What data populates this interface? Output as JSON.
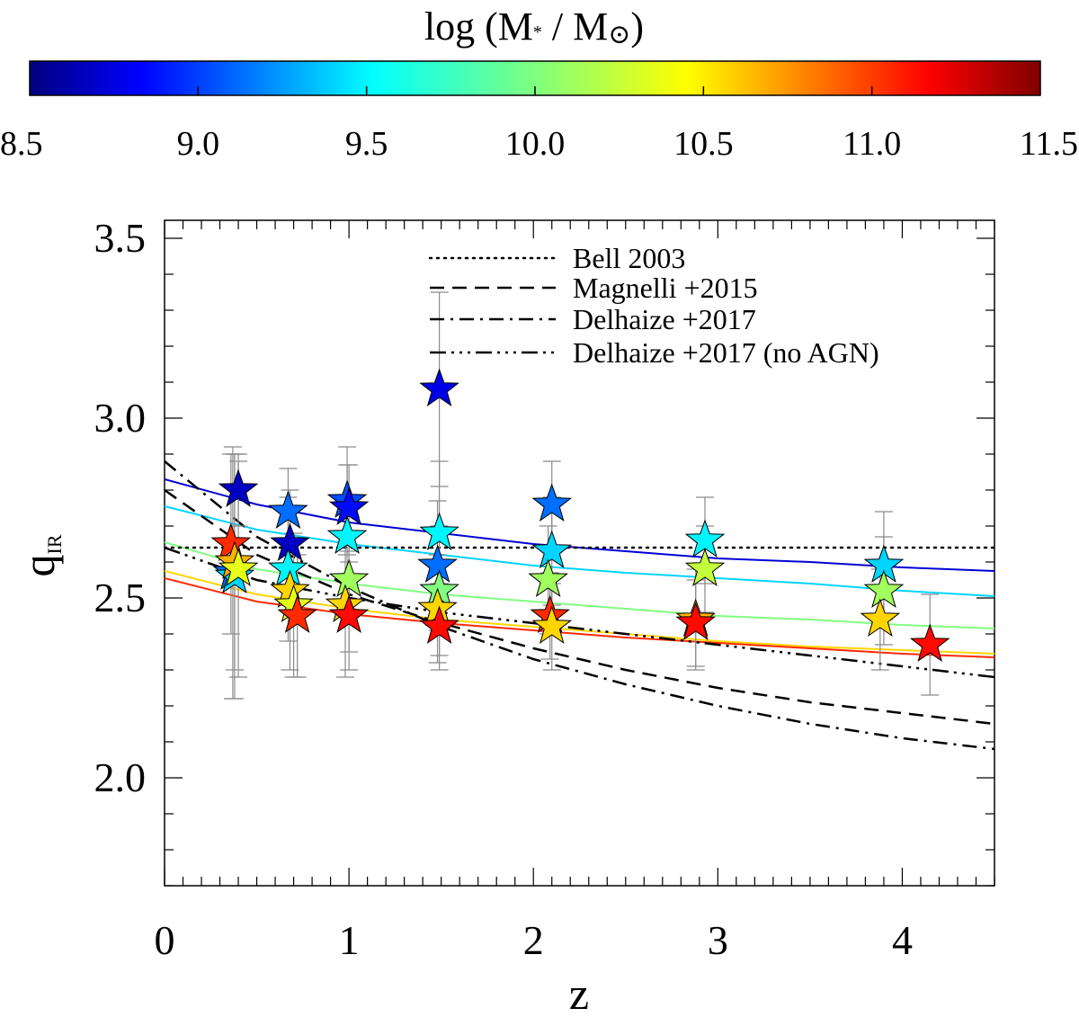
{
  "chart_data": {
    "type": "scatter",
    "colorbar": {
      "title_prefix": "log (M",
      "title_star": "*",
      "title_mid": " / M",
      "title_sun": "⊙",
      "title_suffix": ")",
      "range": [
        8.5,
        11.5
      ],
      "ticks": [
        "8.5",
        "9.0",
        "9.5",
        "10.0",
        "10.5",
        "11.0",
        "11.5"
      ],
      "colormap": [
        "#00007f",
        "#0000ff",
        "#007fff",
        "#00ffff",
        "#7fff7f",
        "#ffff00",
        "#ff7f00",
        "#ff0000",
        "#7f0000"
      ]
    },
    "xlabel": "z",
    "ylabel": "q",
    "ylabel_sub": "IR",
    "xlim": [
      0,
      4.5
    ],
    "ylim": [
      1.7,
      3.55
    ],
    "xticks": [
      "0",
      "1",
      "2",
      "3",
      "4"
    ],
    "yticks": [
      "2.0",
      "2.5",
      "3.0",
      "3.5"
    ],
    "legend": {
      "position": "top-right",
      "entries": [
        {
          "label": "Bell 2003",
          "style": "dotted"
        },
        {
          "label": "Magnelli +2015",
          "style": "dashed"
        },
        {
          "label": "Delhaize +2017",
          "style": "dashdot"
        },
        {
          "label": "Delhaize +2017 (no AGN)",
          "style": "dashdotdotdot"
        }
      ]
    },
    "reference_lines": [
      {
        "name": "Bell 2003",
        "style": "dotted",
        "x": [
          0,
          4.5
        ],
        "y": [
          2.64,
          2.64
        ]
      },
      {
        "name": "Magnelli +2015",
        "style": "dashed",
        "x": [
          0,
          0.5,
          1,
          1.5,
          2,
          2.5,
          3,
          3.5,
          4,
          4.5
        ],
        "y": [
          2.8,
          2.62,
          2.51,
          2.43,
          2.36,
          2.3,
          2.25,
          2.21,
          2.18,
          2.15
        ]
      },
      {
        "name": "Delhaize +2017",
        "style": "dashdot",
        "x": [
          0,
          0.5,
          1,
          1.5,
          2,
          2.5,
          3,
          3.5,
          4,
          4.5
        ],
        "y": [
          2.88,
          2.67,
          2.53,
          2.42,
          2.33,
          2.26,
          2.2,
          2.15,
          2.11,
          2.08
        ]
      },
      {
        "name": "Delhaize +2017 (no AGN)",
        "style": "dashdotdotdot",
        "x": [
          0,
          0.5,
          1,
          1.5,
          2,
          2.5,
          3,
          3.5,
          4,
          4.5
        ],
        "y": [
          2.64,
          2.55,
          2.5,
          2.46,
          2.43,
          2.4,
          2.37,
          2.34,
          2.31,
          2.28
        ]
      }
    ],
    "fit_curves": [
      {
        "logM": 8.75,
        "x": [
          0,
          0.5,
          1,
          1.5,
          2,
          2.5,
          3,
          3.5,
          4,
          4.5
        ],
        "y": [
          2.83,
          2.76,
          2.71,
          2.68,
          2.65,
          2.63,
          2.61,
          2.6,
          2.585,
          2.575
        ]
      },
      {
        "logM": 9.5,
        "x": [
          0,
          0.5,
          1,
          1.5,
          2,
          2.5,
          3,
          3.5,
          4,
          4.5
        ],
        "y": [
          2.755,
          2.69,
          2.65,
          2.62,
          2.59,
          2.57,
          2.555,
          2.54,
          2.52,
          2.505
        ]
      },
      {
        "logM": 10.0,
        "x": [
          0,
          0.5,
          1,
          1.5,
          2,
          2.5,
          3,
          3.5,
          4,
          4.5
        ],
        "y": [
          2.655,
          2.58,
          2.54,
          2.51,
          2.49,
          2.47,
          2.45,
          2.44,
          2.425,
          2.415
        ]
      },
      {
        "logM": 10.5,
        "x": [
          0,
          0.5,
          1,
          1.5,
          2,
          2.5,
          3,
          3.5,
          4,
          4.5
        ],
        "y": [
          2.575,
          2.51,
          2.47,
          2.44,
          2.42,
          2.4,
          2.38,
          2.365,
          2.355,
          2.345
        ]
      },
      {
        "logM": 11.0,
        "x": [
          0,
          0.5,
          1,
          1.5,
          2,
          2.5,
          3,
          3.5,
          4,
          4.5
        ],
        "y": [
          2.555,
          2.49,
          2.455,
          2.43,
          2.41,
          2.39,
          2.375,
          2.36,
          2.345,
          2.335
        ]
      }
    ],
    "points": [
      {
        "z": 0.4,
        "q": 2.8,
        "err": 0.1,
        "logM": 8.7
      },
      {
        "z": 0.37,
        "q": 2.57,
        "err": 0.35,
        "logM": 9.2
      },
      {
        "z": 0.38,
        "q": 2.56,
        "err": 0.34,
        "logM": 9.5
      },
      {
        "z": 0.36,
        "q": 2.65,
        "err": 0.25,
        "logM": 11.0
      },
      {
        "z": 0.38,
        "q": 2.6,
        "err": 0.3,
        "logM": 10.6
      },
      {
        "z": 0.4,
        "q": 2.58,
        "err": 0.3,
        "logM": 10.3
      },
      {
        "z": 0.67,
        "q": 2.74,
        "err": 0.12,
        "logM": 9.2
      },
      {
        "z": 0.68,
        "q": 2.65,
        "err": 0.15,
        "logM": 8.7
      },
      {
        "z": 0.67,
        "q": 2.58,
        "err": 0.2,
        "logM": 9.6
      },
      {
        "z": 0.68,
        "q": 2.52,
        "err": 0.22,
        "logM": 10.5
      },
      {
        "z": 0.7,
        "q": 2.48,
        "err": 0.2,
        "logM": 10.3
      },
      {
        "z": 0.72,
        "q": 2.45,
        "err": 0.17,
        "logM": 11.0
      },
      {
        "z": 0.99,
        "q": 2.77,
        "err": 0.15,
        "logM": 9.1
      },
      {
        "z": 1.0,
        "q": 2.75,
        "err": 0.12,
        "logM": 8.9
      },
      {
        "z": 0.99,
        "q": 2.67,
        "err": 0.2,
        "logM": 9.6
      },
      {
        "z": 1.0,
        "q": 2.55,
        "err": 0.2,
        "logM": 10.1
      },
      {
        "z": 0.98,
        "q": 2.48,
        "err": 0.2,
        "logM": 10.5
      },
      {
        "z": 1.0,
        "q": 2.45,
        "err": 0.15,
        "logM": 11.1
      },
      {
        "z": 1.49,
        "q": 3.08,
        "err": 0.27,
        "logM": 8.8
      },
      {
        "z": 1.49,
        "q": 2.68,
        "err": 0.2,
        "logM": 9.6
      },
      {
        "z": 1.48,
        "q": 2.59,
        "err": 0.18,
        "logM": 9.2
      },
      {
        "z": 1.49,
        "q": 2.52,
        "err": 0.18,
        "logM": 10.0
      },
      {
        "z": 1.48,
        "q": 2.47,
        "err": 0.15,
        "logM": 10.5
      },
      {
        "z": 1.49,
        "q": 2.42,
        "err": 0.12,
        "logM": 11.1
      },
      {
        "z": 2.1,
        "q": 2.76,
        "err": 0.12,
        "logM": 9.2
      },
      {
        "z": 2.1,
        "q": 2.63,
        "err": 0.15,
        "logM": 9.5
      },
      {
        "z": 2.08,
        "q": 2.55,
        "err": 0.15,
        "logM": 10.1
      },
      {
        "z": 2.09,
        "q": 2.45,
        "err": 0.12,
        "logM": 11.0
      },
      {
        "z": 2.1,
        "q": 2.42,
        "err": 0.12,
        "logM": 10.5
      },
      {
        "z": 2.93,
        "q": 2.66,
        "err": 0.12,
        "logM": 9.6
      },
      {
        "z": 2.93,
        "q": 2.58,
        "err": 0.12,
        "logM": 10.2
      },
      {
        "z": 2.88,
        "q": 2.44,
        "err": 0.14,
        "logM": 10.6
      },
      {
        "z": 2.88,
        "q": 2.43,
        "err": 0.12,
        "logM": 11.1
      },
      {
        "z": 3.9,
        "q": 2.59,
        "err": 0.15,
        "logM": 9.5
      },
      {
        "z": 3.9,
        "q": 2.52,
        "err": 0.15,
        "logM": 10.1
      },
      {
        "z": 3.88,
        "q": 2.44,
        "err": 0.14,
        "logM": 10.5
      },
      {
        "z": 4.15,
        "q": 2.37,
        "err": 0.14,
        "logM": 11.1
      }
    ]
  }
}
